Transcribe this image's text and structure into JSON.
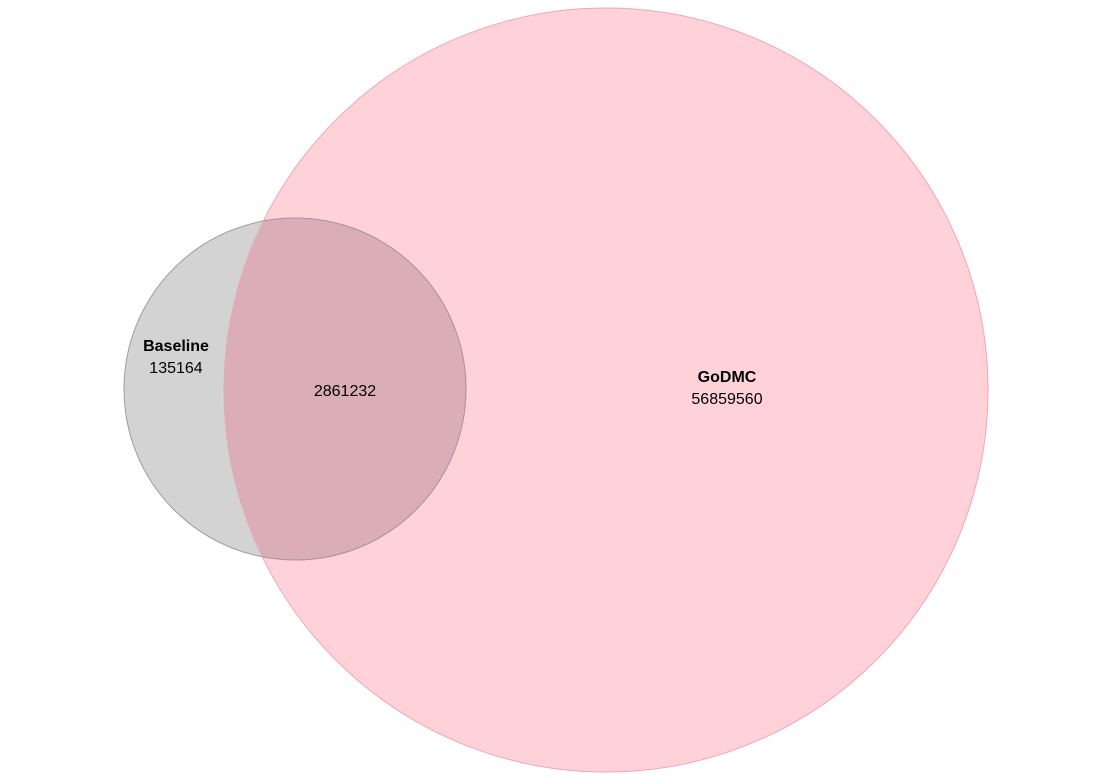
{
  "venn": {
    "sets": [
      {
        "name": "Baseline",
        "only_count": "135164",
        "fill_color": "#d3d3d3",
        "stroke_color": "#9e9e9e"
      },
      {
        "name": "GoDMC",
        "only_count": "56859560",
        "fill_color": "#ffc0cb",
        "stroke_color": "#f2a5b4"
      }
    ],
    "intersection_count": "2861232",
    "overlap_fill_color": "#dbadb6"
  }
}
